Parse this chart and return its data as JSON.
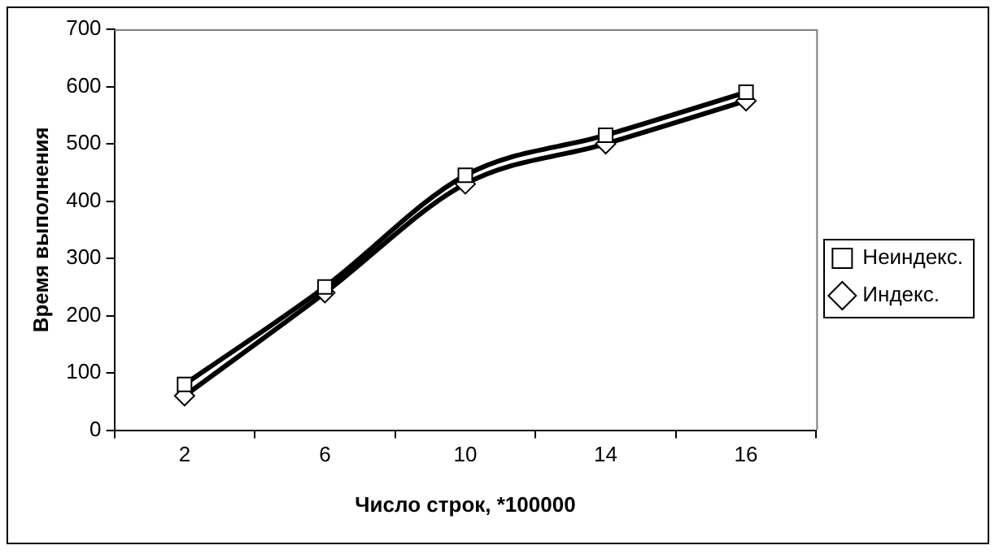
{
  "chart_data": {
    "type": "line",
    "xlabel": "Число строк, *100000",
    "ylabel": "Время выполнения",
    "categories": [
      "2",
      "6",
      "10",
      "14",
      "16"
    ],
    "series": [
      {
        "name": "Индекс.",
        "color": "#000000",
        "marker": "diamond",
        "values": [
          60,
          240,
          430,
          500,
          575
        ]
      },
      {
        "name": "Неиндекс.",
        "color": "#000000",
        "marker": "square",
        "values": [
          80,
          250,
          445,
          515,
          590
        ]
      }
    ],
    "ylim": [
      0,
      700
    ],
    "yticks": [
      0,
      100,
      200,
      300,
      400,
      500,
      600,
      700
    ],
    "grid": false,
    "legend": "right",
    "line_style": "solid"
  }
}
